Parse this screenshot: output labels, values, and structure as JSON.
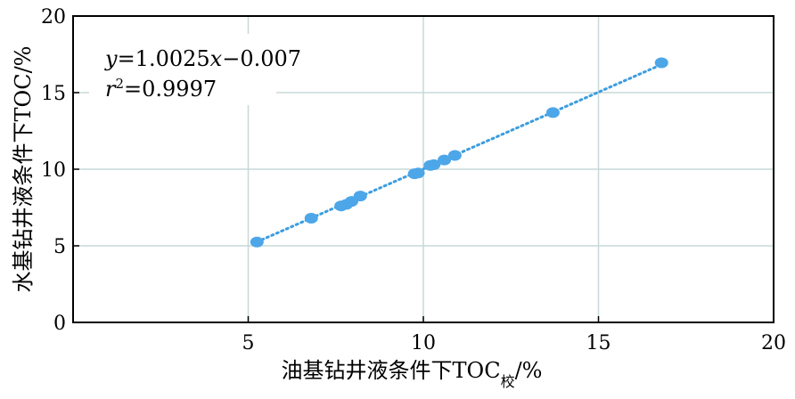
{
  "chart_data": {
    "type": "scatter",
    "xlabel": "油基钻井液条件下TOC",
    "xlabel_subscript": "校",
    "xlabel_unit": "/%",
    "ylabel": "水基钻井液条件下TOC/%",
    "xlim": [
      0,
      20
    ],
    "ylim": [
      0,
      20
    ],
    "xticks": [
      "5",
      "10",
      "15",
      "20"
    ],
    "yticks": [
      "0",
      "5",
      "10",
      "15",
      "20"
    ],
    "grid": true,
    "points": [
      {
        "x": 5.25,
        "y": 5.25
      },
      {
        "x": 6.8,
        "y": 6.8
      },
      {
        "x": 7.65,
        "y": 7.6
      },
      {
        "x": 7.8,
        "y": 7.7
      },
      {
        "x": 7.95,
        "y": 7.9
      },
      {
        "x": 8.2,
        "y": 8.25
      },
      {
        "x": 9.75,
        "y": 9.7
      },
      {
        "x": 9.85,
        "y": 9.75
      },
      {
        "x": 10.2,
        "y": 10.25
      },
      {
        "x": 10.3,
        "y": 10.3
      },
      {
        "x": 10.6,
        "y": 10.6
      },
      {
        "x": 10.9,
        "y": 10.9
      },
      {
        "x": 13.7,
        "y": 13.7
      },
      {
        "x": 16.8,
        "y": 16.95
      }
    ],
    "trendline": {
      "slope": 1.0025,
      "intercept": -0.007,
      "x_range": [
        5.25,
        16.8
      ],
      "style": "dotted"
    },
    "annotation": {
      "equation_y": "y",
      "equation_rest": "=1.0025",
      "equation_x": "x",
      "equation_end": "−0.007",
      "r2_r": "r",
      "r2_sup": "2",
      "r2_rest": "=0.9997"
    },
    "colors": {
      "points": "#4da6e8",
      "trendline": "#3a9de0",
      "grid": "#c8d8d8",
      "axis": "#000000"
    }
  }
}
